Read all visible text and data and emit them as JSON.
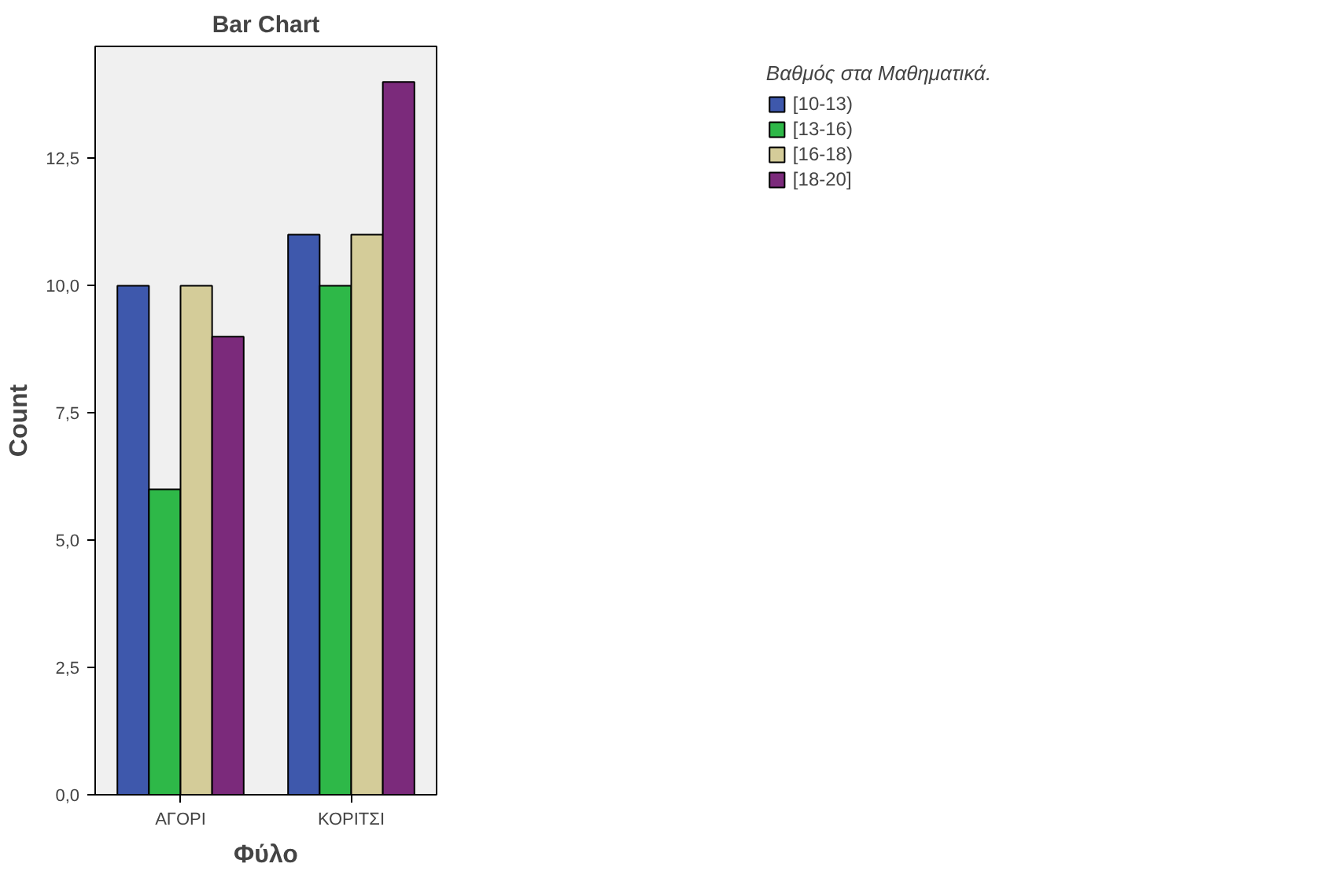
{
  "chart_data": {
    "type": "bar",
    "title": "Bar Chart",
    "xlabel": "Φύλο",
    "ylabel": "Count",
    "legend_title": "Βαθμός στα Μαθηματικά.",
    "legend": "right",
    "categories": [
      "ΑΓΟΡΙ",
      "ΚΟΡΙΤΣΙ"
    ],
    "series": [
      {
        "name": "[10-13)",
        "color": "#3e58ac",
        "values": [
          10,
          11
        ]
      },
      {
        "name": "[13-16)",
        "color": "#2eb848",
        "values": [
          6,
          10
        ]
      },
      {
        "name": "[16-18)",
        "color": "#d4cc99",
        "values": [
          10,
          11
        ]
      },
      {
        "name": "[18-20]",
        "color": "#7b2a7b",
        "values": [
          9,
          14
        ]
      }
    ],
    "ylim": [
      0,
      14.7
    ],
    "yticks": [
      {
        "value": 0,
        "label": "0,0"
      },
      {
        "value": 2.5,
        "label": "2,5"
      },
      {
        "value": 5,
        "label": "5,0"
      },
      {
        "value": 7.5,
        "label": "7,5"
      },
      {
        "value": 10,
        "label": "10,0"
      },
      {
        "value": 12.5,
        "label": "12,5"
      }
    ],
    "grid": false
  }
}
